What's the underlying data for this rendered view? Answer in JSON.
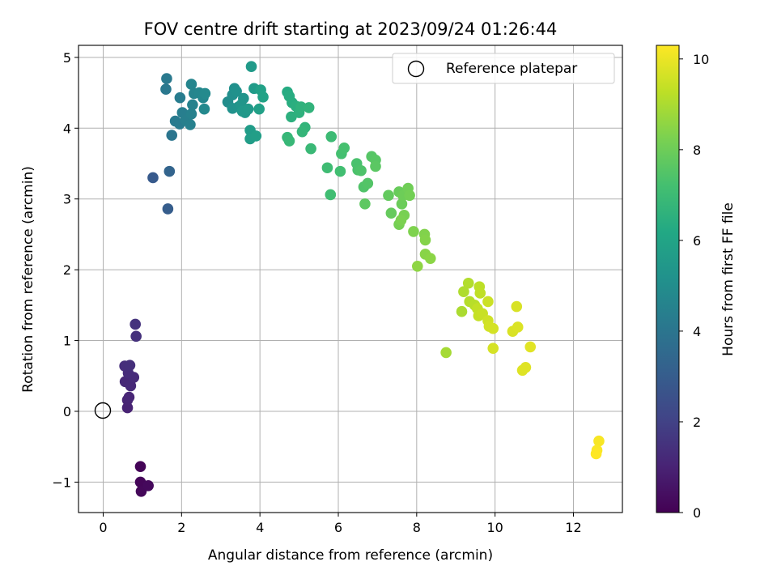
{
  "chart_data": {
    "type": "scatter",
    "title": "FOV centre drift starting at 2023/09/24 01:26:44",
    "xlabel": "Angular distance from reference (arcmin)",
    "ylabel": "Rotation from reference (arcmin)",
    "xlim": [
      -0.63,
      13.25
    ],
    "ylim": [
      -1.43,
      5.17
    ],
    "xticks": [
      0,
      2,
      4,
      6,
      8,
      10,
      12
    ],
    "yticks": [
      -1,
      0,
      1,
      2,
      3,
      4,
      5
    ],
    "xtick_labels": [
      "0",
      "2",
      "4",
      "6",
      "8",
      "10",
      "12"
    ],
    "ytick_labels": [
      "−1",
      "0",
      "1",
      "2",
      "3",
      "4",
      "5"
    ],
    "grid": true,
    "legend": {
      "location": "top-right",
      "entries": [
        {
          "label": "Reference platepar",
          "marker": "open-circle"
        }
      ]
    },
    "reference_point": {
      "x": 0,
      "y": 0
    },
    "colorbar": {
      "label": "Hours from first FF file",
      "range": [
        0,
        10.3
      ],
      "ticks": [
        0,
        2,
        4,
        6,
        8,
        10
      ],
      "tick_labels": [
        "0",
        "2",
        "4",
        "6",
        "8",
        "10"
      ],
      "colormap": "viridis"
    },
    "points": [
      {
        "x": 0.95,
        "y": -0.78,
        "t": 0.1
      },
      {
        "x": 0.95,
        "y": -1.0,
        "t": 0.15
      },
      {
        "x": 0.97,
        "y": -1.13,
        "t": 0.2
      },
      {
        "x": 1.15,
        "y": -1.05,
        "t": 0.25
      },
      {
        "x": 0.62,
        "y": 0.05,
        "t": 1.0
      },
      {
        "x": 0.62,
        "y": 0.16,
        "t": 1.05
      },
      {
        "x": 0.66,
        "y": 0.2,
        "t": 1.1
      },
      {
        "x": 0.56,
        "y": 0.42,
        "t": 1.15
      },
      {
        "x": 0.7,
        "y": 0.36,
        "t": 1.2
      },
      {
        "x": 0.78,
        "y": 0.48,
        "t": 1.25
      },
      {
        "x": 0.64,
        "y": 0.54,
        "t": 1.3
      },
      {
        "x": 0.55,
        "y": 0.64,
        "t": 1.35
      },
      {
        "x": 0.68,
        "y": 0.65,
        "t": 1.4
      },
      {
        "x": 0.84,
        "y": 1.06,
        "t": 1.45
      },
      {
        "x": 0.82,
        "y": 1.23,
        "t": 1.5
      },
      {
        "x": 1.27,
        "y": 3.3,
        "t": 2.9
      },
      {
        "x": 1.65,
        "y": 2.86,
        "t": 3.0
      },
      {
        "x": 1.69,
        "y": 3.39,
        "t": 3.3
      },
      {
        "x": 1.75,
        "y": 3.9,
        "t": 4.0
      },
      {
        "x": 1.6,
        "y": 4.55,
        "t": 4.1
      },
      {
        "x": 1.62,
        "y": 4.7,
        "t": 4.15
      },
      {
        "x": 1.84,
        "y": 4.1,
        "t": 4.2
      },
      {
        "x": 1.95,
        "y": 4.06,
        "t": 4.25
      },
      {
        "x": 1.96,
        "y": 4.43,
        "t": 4.3
      },
      {
        "x": 2.02,
        "y": 4.22,
        "t": 4.35
      },
      {
        "x": 2.1,
        "y": 4.11,
        "t": 4.4
      },
      {
        "x": 2.22,
        "y": 4.05,
        "t": 4.45
      },
      {
        "x": 2.25,
        "y": 4.2,
        "t": 4.5
      },
      {
        "x": 2.28,
        "y": 4.33,
        "t": 4.55
      },
      {
        "x": 2.32,
        "y": 4.49,
        "t": 4.6
      },
      {
        "x": 2.25,
        "y": 4.62,
        "t": 4.65
      },
      {
        "x": 2.45,
        "y": 4.5,
        "t": 4.7
      },
      {
        "x": 2.55,
        "y": 4.43,
        "t": 4.75
      },
      {
        "x": 2.58,
        "y": 4.27,
        "t": 4.8
      },
      {
        "x": 2.6,
        "y": 4.49,
        "t": 4.85
      },
      {
        "x": 3.18,
        "y": 4.37,
        "t": 5.0
      },
      {
        "x": 3.3,
        "y": 4.47,
        "t": 5.05
      },
      {
        "x": 3.35,
        "y": 4.56,
        "t": 5.1
      },
      {
        "x": 3.4,
        "y": 4.52,
        "t": 5.15
      },
      {
        "x": 3.3,
        "y": 4.28,
        "t": 5.2
      },
      {
        "x": 3.45,
        "y": 4.3,
        "t": 5.25
      },
      {
        "x": 3.58,
        "y": 4.42,
        "t": 5.3
      },
      {
        "x": 3.52,
        "y": 4.33,
        "t": 5.35
      },
      {
        "x": 3.62,
        "y": 4.22,
        "t": 5.4
      },
      {
        "x": 3.55,
        "y": 4.24,
        "t": 5.45
      },
      {
        "x": 3.7,
        "y": 4.27,
        "t": 5.5
      },
      {
        "x": 3.78,
        "y": 4.87,
        "t": 5.55
      },
      {
        "x": 3.85,
        "y": 4.56,
        "t": 5.6
      },
      {
        "x": 3.75,
        "y": 3.97,
        "t": 5.65
      },
      {
        "x": 3.75,
        "y": 3.85,
        "t": 5.7
      },
      {
        "x": 3.9,
        "y": 3.89,
        "t": 5.75
      },
      {
        "x": 3.98,
        "y": 4.27,
        "t": 5.8
      },
      {
        "x": 4.02,
        "y": 4.54,
        "t": 5.85
      },
      {
        "x": 4.08,
        "y": 4.44,
        "t": 5.9
      },
      {
        "x": 4.7,
        "y": 4.51,
        "t": 6.3
      },
      {
        "x": 4.75,
        "y": 4.45,
        "t": 6.35
      },
      {
        "x": 4.82,
        "y": 4.36,
        "t": 6.4
      },
      {
        "x": 4.92,
        "y": 4.31,
        "t": 6.45
      },
      {
        "x": 4.8,
        "y": 4.16,
        "t": 6.5
      },
      {
        "x": 5.0,
        "y": 4.22,
        "t": 6.55
      },
      {
        "x": 5.05,
        "y": 4.3,
        "t": 6.6
      },
      {
        "x": 5.25,
        "y": 4.29,
        "t": 6.65
      },
      {
        "x": 5.15,
        "y": 4.01,
        "t": 6.7
      },
      {
        "x": 5.08,
        "y": 3.95,
        "t": 6.75
      },
      {
        "x": 4.7,
        "y": 3.87,
        "t": 6.8
      },
      {
        "x": 4.75,
        "y": 3.82,
        "t": 6.85
      },
      {
        "x": 5.3,
        "y": 3.71,
        "t": 6.9
      },
      {
        "x": 5.82,
        "y": 3.88,
        "t": 7.0
      },
      {
        "x": 5.72,
        "y": 3.44,
        "t": 7.05
      },
      {
        "x": 5.8,
        "y": 3.06,
        "t": 7.1
      },
      {
        "x": 6.05,
        "y": 3.39,
        "t": 7.15
      },
      {
        "x": 6.08,
        "y": 3.64,
        "t": 7.2
      },
      {
        "x": 6.15,
        "y": 3.72,
        "t": 7.25
      },
      {
        "x": 6.47,
        "y": 3.5,
        "t": 7.3
      },
      {
        "x": 6.5,
        "y": 3.41,
        "t": 7.35
      },
      {
        "x": 6.58,
        "y": 3.4,
        "t": 7.4
      },
      {
        "x": 6.65,
        "y": 3.17,
        "t": 7.45
      },
      {
        "x": 6.75,
        "y": 3.22,
        "t": 7.5
      },
      {
        "x": 6.85,
        "y": 3.6,
        "t": 7.55
      },
      {
        "x": 6.95,
        "y": 3.55,
        "t": 7.6
      },
      {
        "x": 6.95,
        "y": 3.46,
        "t": 7.65
      },
      {
        "x": 6.68,
        "y": 2.93,
        "t": 7.7
      },
      {
        "x": 7.28,
        "y": 3.05,
        "t": 7.8
      },
      {
        "x": 7.35,
        "y": 2.8,
        "t": 7.85
      },
      {
        "x": 7.55,
        "y": 3.1,
        "t": 7.9
      },
      {
        "x": 7.62,
        "y": 2.93,
        "t": 7.95
      },
      {
        "x": 7.65,
        "y": 3.05,
        "t": 8.0
      },
      {
        "x": 7.78,
        "y": 3.15,
        "t": 8.05
      },
      {
        "x": 7.82,
        "y": 3.05,
        "t": 8.1
      },
      {
        "x": 7.55,
        "y": 2.64,
        "t": 8.15
      },
      {
        "x": 7.68,
        "y": 2.77,
        "t": 8.2
      },
      {
        "x": 7.6,
        "y": 2.7,
        "t": 8.25
      },
      {
        "x": 7.92,
        "y": 2.54,
        "t": 8.3
      },
      {
        "x": 8.2,
        "y": 2.5,
        "t": 8.35
      },
      {
        "x": 8.22,
        "y": 2.42,
        "t": 8.4
      },
      {
        "x": 8.22,
        "y": 2.22,
        "t": 8.45
      },
      {
        "x": 8.35,
        "y": 2.16,
        "t": 8.5
      },
      {
        "x": 8.02,
        "y": 2.05,
        "t": 8.55
      },
      {
        "x": 8.75,
        "y": 0.83,
        "t": 8.9
      },
      {
        "x": 9.15,
        "y": 1.41,
        "t": 9.0
      },
      {
        "x": 9.2,
        "y": 1.69,
        "t": 9.05
      },
      {
        "x": 9.32,
        "y": 1.81,
        "t": 9.1
      },
      {
        "x": 9.35,
        "y": 1.55,
        "t": 9.15
      },
      {
        "x": 9.48,
        "y": 1.5,
        "t": 9.2
      },
      {
        "x": 9.6,
        "y": 1.76,
        "t": 9.25
      },
      {
        "x": 9.62,
        "y": 1.67,
        "t": 9.3
      },
      {
        "x": 9.55,
        "y": 1.45,
        "t": 9.35
      },
      {
        "x": 9.58,
        "y": 1.35,
        "t": 9.4
      },
      {
        "x": 9.68,
        "y": 1.38,
        "t": 9.45
      },
      {
        "x": 9.82,
        "y": 1.55,
        "t": 9.5
      },
      {
        "x": 9.82,
        "y": 1.28,
        "t": 9.55
      },
      {
        "x": 9.85,
        "y": 1.2,
        "t": 9.6
      },
      {
        "x": 9.95,
        "y": 1.17,
        "t": 9.62
      },
      {
        "x": 9.95,
        "y": 0.89,
        "t": 9.65
      },
      {
        "x": 10.55,
        "y": 1.48,
        "t": 9.7
      },
      {
        "x": 10.45,
        "y": 1.13,
        "t": 9.72
      },
      {
        "x": 10.58,
        "y": 1.19,
        "t": 9.75
      },
      {
        "x": 10.7,
        "y": 0.58,
        "t": 9.8
      },
      {
        "x": 10.78,
        "y": 0.62,
        "t": 9.82
      },
      {
        "x": 10.9,
        "y": 0.91,
        "t": 9.85
      },
      {
        "x": 12.65,
        "y": -0.42,
        "t": 10.2
      },
      {
        "x": 12.6,
        "y": -0.55,
        "t": 10.25
      },
      {
        "x": 12.58,
        "y": -0.6,
        "t": 10.3
      }
    ]
  }
}
